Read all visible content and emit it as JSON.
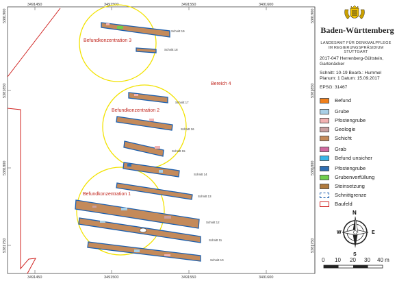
{
  "map": {
    "x_ticks": [
      "3491450",
      "3491500",
      "3491550",
      "3491600"
    ],
    "y_ticks": [
      "5381850",
      "5381800",
      "5381750"
    ],
    "y_tick_top": "5381900",
    "labels": {
      "bk3": "Befundkonzentration 3",
      "bk2": "Befundkonzentration 2",
      "bk1": "Befundkonzentration 1",
      "bereich4": "Bereich 4"
    },
    "cuts": {
      "s19": "Schnitt 19",
      "s18": "Schnitt 18",
      "s17": "Schnitt 17",
      "s16": "Schnitt 16",
      "s15": "Schnitt 15",
      "s14": "Schnitt 14",
      "s13": "Schnitt 13",
      "s12": "Schnitt 12",
      "s11": "Schnitt 11",
      "s10": "Schnitt 10"
    }
  },
  "legend": {
    "state": "Baden-Württemberg",
    "agency_line1": "LANDESAMT FÜR DENKMALPFLEGE",
    "agency_line2": "IM REGIERUNGSPRÄSIDIUM STUTTGART",
    "project_line1": "2017-047 Herrenberg-Gültstein,",
    "project_line2": "Gartenäcker",
    "cut_info": "Schnitt: 10-19  Bearb.: Hummel",
    "plan_info": "Planum: 1      Datum: 15.09.2017",
    "epsg": "EPSG: 31467",
    "items": [
      {
        "label": "Befund",
        "color": "#f07f1a"
      },
      {
        "label": "Grube",
        "color": "#a9cfe6"
      },
      {
        "label": "Pfostengrube",
        "color": "#f2b2b2"
      },
      {
        "label": "Geologie",
        "color": "#c9a0a0"
      },
      {
        "label": "Schicht",
        "color": "#c48a5a"
      },
      {
        "label": "Grab",
        "color": "#d16aa0"
      },
      {
        "label": "Befund unsicher",
        "color": "#38b6e8"
      },
      {
        "label": "Pfostengrube",
        "color": "#2f6fb3"
      },
      {
        "label": "Grubenverfüllung",
        "color": "#6fcf4a"
      },
      {
        "label": "Steinsetzung",
        "color": "#b07a3e"
      },
      {
        "label": "Schnittgrenze",
        "color": "#1c5fae"
      },
      {
        "label": "Baufeld",
        "color": "#d0201e"
      }
    ],
    "scale": [
      "0",
      "10",
      "20",
      "30",
      "40 m"
    ],
    "compass": {
      "n": "N",
      "e": "E",
      "s": "S",
      "w": "W"
    }
  }
}
